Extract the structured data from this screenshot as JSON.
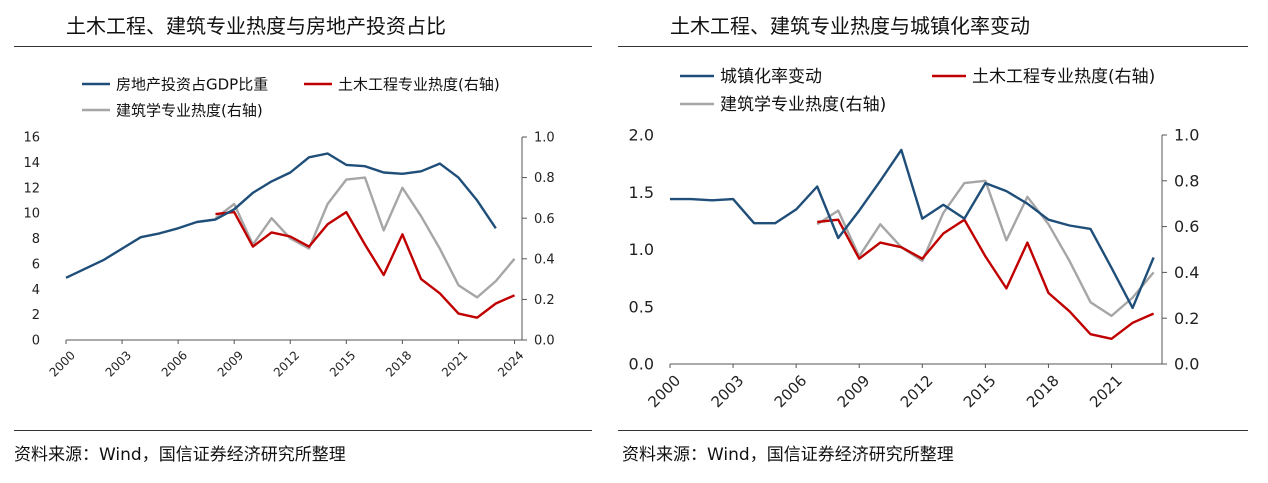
{
  "page": {
    "source_note": "资料来源：Wind，国信证券经济研究所整理"
  },
  "chart_data": [
    {
      "type": "line",
      "title": "土木工程、建筑专业热度与房地产投资占比",
      "xlabel": "",
      "ylabel_left": "",
      "ylabel_right": "",
      "x_ticks": [
        "2000",
        "2003",
        "2006",
        "2009",
        "2012",
        "2015",
        "2018",
        "2021",
        "2024"
      ],
      "ylim_left": [
        0,
        16
      ],
      "yticks_left": [
        "0",
        "2",
        "4",
        "6",
        "8",
        "10",
        "12",
        "14",
        "16"
      ],
      "ylim_right": [
        0,
        1.0
      ],
      "yticks_right": [
        "0.0",
        "0.2",
        "0.4",
        "0.6",
        "0.8",
        "1.0"
      ],
      "legend": "top",
      "grid": false,
      "series": [
        {
          "name": "房地产投资占GDP比重",
          "axis": "left",
          "color": "#1f4e79",
          "x": [
            2000,
            2001,
            2002,
            2003,
            2004,
            2005,
            2006,
            2007,
            2008,
            2009,
            2010,
            2011,
            2012,
            2013,
            2014,
            2015,
            2016,
            2017,
            2018,
            2019,
            2020,
            2021,
            2022,
            2023
          ],
          "y": [
            4.9,
            5.6,
            6.3,
            7.2,
            8.1,
            8.4,
            8.8,
            9.3,
            9.5,
            10.3,
            11.6,
            12.5,
            13.2,
            14.4,
            14.7,
            13.8,
            13.7,
            13.2,
            13.1,
            13.3,
            13.9,
            12.8,
            11.0,
            8.8
          ]
        },
        {
          "name": "土木工程专业热度(右轴)",
          "axis": "right",
          "color": "#c00000",
          "x": [
            2008,
            2009,
            2010,
            2011,
            2012,
            2013,
            2014,
            2015,
            2016,
            2017,
            2018,
            2019,
            2020,
            2021,
            2022,
            2023,
            2024
          ],
          "y": [
            0.62,
            0.63,
            0.46,
            0.53,
            0.51,
            0.46,
            0.57,
            0.63,
            0.47,
            0.32,
            0.52,
            0.3,
            0.23,
            0.13,
            0.11,
            0.18,
            0.22
          ]
        },
        {
          "name": "建筑学专业热度(右轴)",
          "axis": "right",
          "color": "#a6a6a6",
          "x": [
            2008,
            2009,
            2010,
            2011,
            2012,
            2013,
            2014,
            2015,
            2016,
            2017,
            2018,
            2019,
            2020,
            2021,
            2022,
            2023,
            2024
          ],
          "y": [
            0.6,
            0.67,
            0.47,
            0.6,
            0.5,
            0.45,
            0.67,
            0.79,
            0.8,
            0.54,
            0.75,
            0.61,
            0.45,
            0.27,
            0.21,
            0.29,
            0.4
          ]
        }
      ]
    },
    {
      "type": "line",
      "title": "土木工程、建筑专业热度与城镇化率变动",
      "xlabel": "",
      "ylabel_left": "",
      "ylabel_right": "",
      "x_ticks": [
        "2000",
        "2003",
        "2006",
        "2009",
        "2012",
        "2015",
        "2018",
        "2021"
      ],
      "ylim_left": [
        0,
        2.0
      ],
      "yticks_left": [
        "0.0",
        "0.5",
        "1.0",
        "1.5",
        "2.0"
      ],
      "ylim_right": [
        0,
        1.0
      ],
      "yticks_right": [
        "0.0",
        "0.2",
        "0.4",
        "0.6",
        "0.8",
        "1.0"
      ],
      "legend": "top",
      "grid": false,
      "series": [
        {
          "name": "城镇化率变动",
          "axis": "left",
          "color": "#1f4e79",
          "x": [
            2000,
            2001,
            2002,
            2003,
            2004,
            2005,
            2006,
            2007,
            2008,
            2009,
            2010,
            2011,
            2012,
            2013,
            2014,
            2015,
            2016,
            2017,
            2018,
            2019,
            2020,
            2021,
            2022,
            2023
          ],
          "y": [
            1.44,
            1.44,
            1.43,
            1.44,
            1.23,
            1.23,
            1.35,
            1.55,
            1.1,
            1.34,
            1.6,
            1.87,
            1.27,
            1.39,
            1.27,
            1.58,
            1.51,
            1.4,
            1.26,
            1.21,
            1.18,
            0.84,
            0.49,
            0.93
          ]
        },
        {
          "name": "土木工程专业热度(右轴)",
          "axis": "right",
          "color": "#c00000",
          "x": [
            2007,
            2008,
            2009,
            2010,
            2011,
            2012,
            2013,
            2014,
            2015,
            2016,
            2017,
            2018,
            2019,
            2020,
            2021,
            2022,
            2023
          ],
          "y": [
            0.62,
            0.63,
            0.46,
            0.53,
            0.51,
            0.46,
            0.57,
            0.63,
            0.47,
            0.33,
            0.53,
            0.31,
            0.23,
            0.13,
            0.11,
            0.18,
            0.22
          ]
        },
        {
          "name": "建筑学专业热度(右轴)",
          "axis": "right",
          "color": "#a6a6a6",
          "x": [
            2007,
            2008,
            2009,
            2010,
            2011,
            2012,
            2013,
            2014,
            2015,
            2016,
            2017,
            2018,
            2019,
            2020,
            2021,
            2022,
            2023
          ],
          "y": [
            0.61,
            0.67,
            0.47,
            0.61,
            0.51,
            0.45,
            0.66,
            0.79,
            0.8,
            0.54,
            0.73,
            0.61,
            0.45,
            0.27,
            0.21,
            0.29,
            0.4
          ]
        }
      ]
    }
  ]
}
